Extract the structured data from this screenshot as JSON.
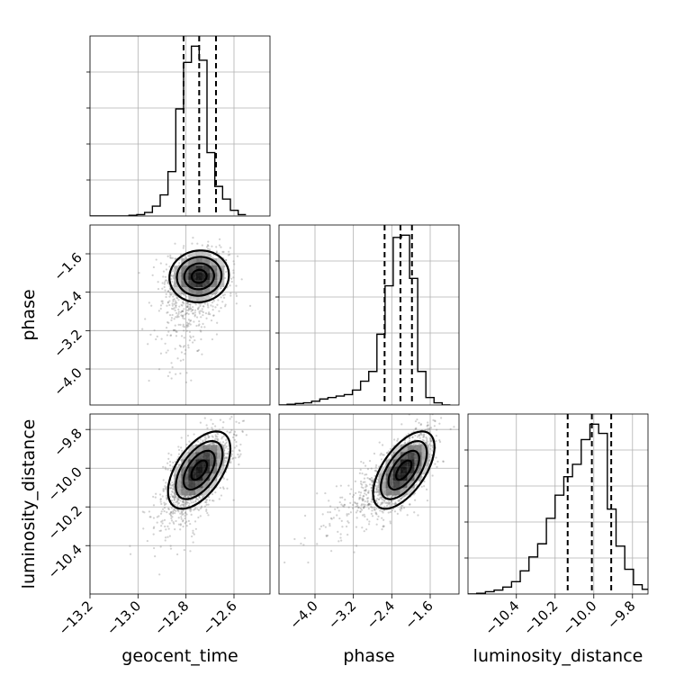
{
  "chart_data": {
    "type": "corner",
    "parameters": [
      "geocent_time",
      "phase",
      "luminosity_distance"
    ],
    "axis_labels": {
      "x": [
        "geocent_time",
        "phase",
        "luminosity_distance"
      ],
      "y": [
        "phase",
        "luminosity_distance"
      ]
    },
    "ranges": {
      "geocent_time": [
        -13.2,
        -12.45
      ],
      "phase": [
        -4.75,
        -1.0
      ],
      "luminosity_distance": [
        -10.65,
        -9.72
      ]
    },
    "ticks": {
      "geocent_time": {
        "values": [
          -13.2,
          -13.0,
          -12.8,
          -12.6
        ],
        "labels": [
          "−13.2",
          "−13.0",
          "−12.8",
          "−12.6"
        ]
      },
      "phase": {
        "values": [
          -4.0,
          -3.2,
          -2.4,
          -1.6
        ],
        "labels": [
          "−4.0",
          "−3.2",
          "−2.4",
          "−1.6"
        ]
      },
      "luminosity_distance": {
        "values": [
          -10.4,
          -10.2,
          -10.0,
          -9.8
        ],
        "labels": [
          "−10.4",
          "−10.2",
          "−10.0",
          "−9.8"
        ]
      }
    },
    "quantiles": {
      "geocent_time": [
        -12.81,
        -12.745,
        -12.675
      ],
      "phase": [
        -2.55,
        -2.22,
        -1.98
      ],
      "luminosity_distance": [
        -10.135,
        -10.01,
        -9.91
      ]
    },
    "marginals": {
      "geocent_time": {
        "edges": [
          -13.2,
          -13.1675,
          -13.135,
          -13.1025,
          -13.07,
          -13.0375,
          -13.005,
          -12.9725,
          -12.94,
          -12.9075,
          -12.875,
          -12.8425,
          -12.81,
          -12.7775,
          -12.745,
          -12.7125,
          -12.68,
          -12.6475,
          -12.615,
          -12.5825,
          -12.55
        ],
        "counts": [
          0,
          0,
          0,
          0,
          0,
          1,
          2,
          5,
          14,
          30,
          63,
          152,
          218,
          241,
          221,
          90,
          42,
          24,
          8,
          2
        ]
      },
      "phase": {
        "edges": [
          -4.75,
          -4.58,
          -4.41,
          -4.24,
          -4.07,
          -3.9,
          -3.73,
          -3.56,
          -3.39,
          -3.22,
          -3.05,
          -2.88,
          -2.71,
          -2.54,
          -2.37,
          -2.2,
          -2.03,
          -1.86,
          -1.69,
          -1.52,
          -1.35,
          -1.18
        ],
        "counts": [
          0,
          1,
          2,
          3,
          5,
          8,
          10,
          12,
          14,
          20,
          32,
          45,
          95,
          160,
          225,
          228,
          170,
          45,
          10,
          3,
          0
        ]
      },
      "luminosity_distance": {
        "edges": [
          -10.65,
          -10.605,
          -10.56,
          -10.515,
          -10.47,
          -10.425,
          -10.38,
          -10.335,
          -10.29,
          -10.245,
          -10.2,
          -10.155,
          -10.11,
          -10.065,
          -10.02,
          -9.975,
          -9.93,
          -9.885,
          -9.84,
          -9.795,
          -9.75,
          -9.705
        ],
        "counts": [
          0,
          1,
          3,
          5,
          9,
          16,
          30,
          48,
          65,
          98,
          128,
          152,
          168,
          200,
          220,
          208,
          110,
          62,
          32,
          12,
          6
        ]
      }
    },
    "joint_2d": [
      {
        "x": "geocent_time",
        "y": "phase",
        "center": [
          -12.745,
          -2.07
        ],
        "sigma": [
          0.062,
          0.27
        ],
        "rho": 0.05,
        "tail_dir": [
          -0.09,
          -1.4
        ]
      },
      {
        "x": "geocent_time",
        "y": "luminosity_distance",
        "center": [
          -12.745,
          -10.01
        ],
        "sigma": [
          0.065,
          0.1
        ],
        "rho": 0.55,
        "tail_dir": [
          -0.1,
          -0.25
        ]
      },
      {
        "x": "phase",
        "y": "luminosity_distance",
        "center": [
          -2.15,
          -10.01
        ],
        "sigma": [
          0.32,
          0.1
        ],
        "rho": 0.6,
        "tail_dir": [
          -1.3,
          -0.22
        ]
      }
    ],
    "grid": true,
    "colors": {
      "line": "#000000",
      "grid": "#b0b0b0",
      "samples": "#7a7a7a",
      "density": "#000000"
    }
  }
}
